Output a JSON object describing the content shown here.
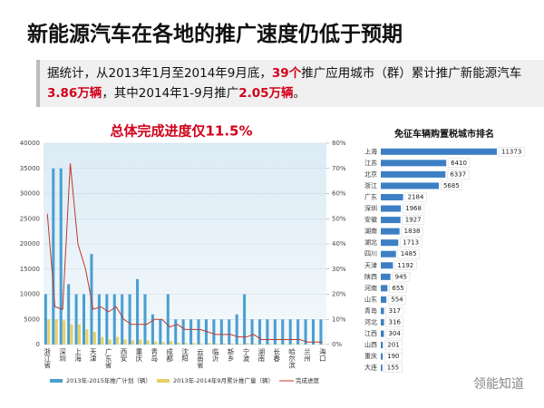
{
  "title": "新能源汽车在各地的推广速度仍低于预期",
  "summary": [
    {
      "text": "据统计，从2013年1月至2014年9月底，",
      "highlight": false
    },
    {
      "text": "39个",
      "highlight": true
    },
    {
      "text": "推广应用城市（群）累计推广新能源汽车",
      "highlight": false
    },
    {
      "text": "3.86万辆",
      "highlight": true
    },
    {
      "text": "，其中2014年1-9月推广",
      "highlight": false
    },
    {
      "text": "2.05万辆",
      "highlight": true
    },
    {
      "text": "。",
      "highlight": false
    }
  ],
  "watermark": "领能知道",
  "chart_data": [
    {
      "type": "combo",
      "title": "总体完成进度仅11.5%",
      "categories": [
        "浙江省",
        null,
        "深圳",
        null,
        "上海",
        null,
        "天津",
        null,
        "广东省",
        null,
        "西安",
        null,
        "重庆",
        null,
        "青岛",
        null,
        "成都",
        null,
        "沈阳",
        null,
        "云南省",
        null,
        "临沂",
        null,
        "新乡",
        null,
        "宁波",
        null,
        "湖南",
        null,
        "长春",
        null,
        "哈尔滨",
        null,
        "兰州",
        null,
        "海口"
      ],
      "series": [
        {
          "name": "2013年-2015年推广计划（辆）",
          "kind": "bar",
          "color": "#4a9fd0",
          "values": [
            10000,
            35000,
            35000,
            12000,
            10000,
            10000,
            18000,
            10000,
            10000,
            10000,
            10000,
            10000,
            13000,
            10000,
            6000,
            5000,
            10000,
            5000,
            5000,
            5000,
            5000,
            5000,
            5000,
            5000,
            5000,
            6000,
            10000,
            5000,
            5000,
            5000,
            5000,
            5000,
            5000,
            5000,
            5000,
            5000,
            5000
          ]
        },
        {
          "name": "2013年-2014年9月累计推广量（辆）",
          "kind": "bar",
          "color": "#e8d060",
          "values": [
            5000,
            5000,
            4800,
            4000,
            4000,
            3000,
            2500,
            1500,
            1000,
            1500,
            1000,
            800,
            1000,
            800,
            600,
            500,
            700,
            400,
            300,
            300,
            200,
            300,
            200,
            200,
            200,
            200,
            300,
            200,
            100,
            100,
            100,
            100,
            100,
            80,
            50,
            50,
            30
          ]
        },
        {
          "name": "完成进度",
          "kind": "line",
          "axis": "y2",
          "color": "#c0392b",
          "values": [
            52,
            15,
            14,
            72,
            40,
            30,
            14,
            15,
            13,
            15,
            10,
            8,
            8,
            8,
            10,
            10,
            7,
            8,
            6,
            6,
            6,
            5,
            4,
            4,
            4,
            3,
            3,
            4,
            2,
            2,
            2,
            2,
            2,
            2,
            1,
            1,
            1
          ]
        }
      ],
      "ylim": [
        0,
        40000
      ],
      "yticks": [
        0,
        5000,
        10000,
        15000,
        20000,
        25000,
        30000,
        35000,
        40000
      ],
      "y2lim": [
        0,
        80
      ],
      "y2ticks": [
        {
          "value": 0,
          "label": "0%"
        },
        {
          "value": 10,
          "label": "10%"
        },
        {
          "value": 20,
          "label": "20%"
        },
        {
          "value": 30,
          "label": "30%"
        },
        {
          "value": 40,
          "label": "40%"
        },
        {
          "value": 50,
          "label": "50%"
        },
        {
          "value": 60,
          "label": "60%"
        },
        {
          "value": 70,
          "label": "70%"
        },
        {
          "value": 80,
          "label": "80%"
        }
      ],
      "grid": true
    },
    {
      "type": "hbar",
      "title": "免征车辆购置税城市排名",
      "color": "#3d7fc4",
      "categories": [
        "上海",
        "江苏",
        "北京",
        "浙江",
        "广东",
        "深圳",
        "安徽",
        "湖南",
        "湖北",
        "四川",
        "天津",
        "陕西",
        "河南",
        "山东",
        "青岛",
        "河北",
        "江西",
        "山西",
        "重庆",
        "大连"
      ],
      "values": [
        11373,
        6410,
        6337,
        5685,
        2184,
        1968,
        1927,
        1838,
        1713,
        1485,
        1192,
        945,
        655,
        554,
        317,
        316,
        304,
        201,
        190,
        155
      ]
    }
  ]
}
